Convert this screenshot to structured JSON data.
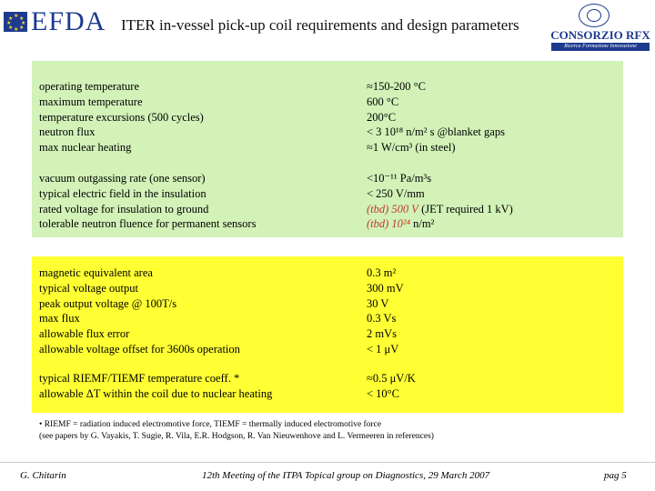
{
  "header": {
    "efda_logo_text": "EFDA",
    "title": "ITER in-vessel pick-up coil requirements and design parameters",
    "rfx_logo_name": "CONSORZIO RFX",
    "rfx_logo_tagline": "Ricerca Formazione Innovazione"
  },
  "green_panel": {
    "group1": [
      {
        "label": "operating temperature",
        "value": "≈150-200 °C"
      },
      {
        "label": "maximum temperature",
        "value": "600 °C"
      },
      {
        "label": "temperature excursions (500 cycles)",
        "value": "200°C"
      },
      {
        "label": "neutron flux",
        "value": "< 3 10¹⁸ n/m² s @blanket gaps"
      },
      {
        "label": "max nuclear heating",
        "value": "≈1 W/cm³  (in steel)"
      }
    ],
    "group2": [
      {
        "label": "vacuum outgassing rate (one sensor)",
        "value": "<10⁻¹¹ Pa/m³s"
      },
      {
        "label": "typical electric field in the insulation",
        "value": "< 250 V/mm"
      },
      {
        "label": "rated voltage for insulation to ground",
        "value_red": "(tbd) 500 V",
        "value_rest": " (JET required 1 kV)"
      },
      {
        "label": "tolerable neutron fluence for permanent sensors",
        "value_red": "(tbd) 10²⁴",
        "value_rest": " n/m²"
      }
    ]
  },
  "yellow_panel": {
    "group1": [
      {
        "label": "magnetic equivalent area",
        "value": "0.3 m²"
      },
      {
        "label": "typical voltage output",
        "value": "300 mV"
      },
      {
        "label": "peak output voltage @ 100T/s",
        "value": "30 V"
      },
      {
        "label": "max flux",
        "value": "0.3 Vs"
      },
      {
        "label": "allowable flux error",
        "value": "2 mVs"
      },
      {
        "label": "allowable voltage offset for 3600s operation",
        "value": "< 1 μV"
      }
    ],
    "group2": [
      {
        "label": "typical RIEMF/TIEMF temperature coeff. *",
        "value": " ≈0.5  μV/K"
      },
      {
        "label": "allowable ΔT within the coil due to nuclear heating",
        "value": "< 10°C"
      }
    ]
  },
  "footnote": {
    "line1": "• RIEMF = radiation induced electromotive force, TIEMF =  thermally induced electromotive force",
    "line2": "(see papers by G. Vayakis, T. Sugie, R. Vila, E.R. Hodgson, R. Van Nieuwenhove and L. Vermeeren in references)"
  },
  "footer": {
    "author": "G. Chitarin",
    "meeting": "12th Meeting of the ITPA Topical group on Diagnostics, 29 March 2007",
    "page": "pag 5"
  },
  "colors": {
    "green_panel": "#d2f2b8",
    "yellow_panel": "#ffff33",
    "red_text": "#c0392b",
    "logo_blue": "#1d3a8f"
  }
}
